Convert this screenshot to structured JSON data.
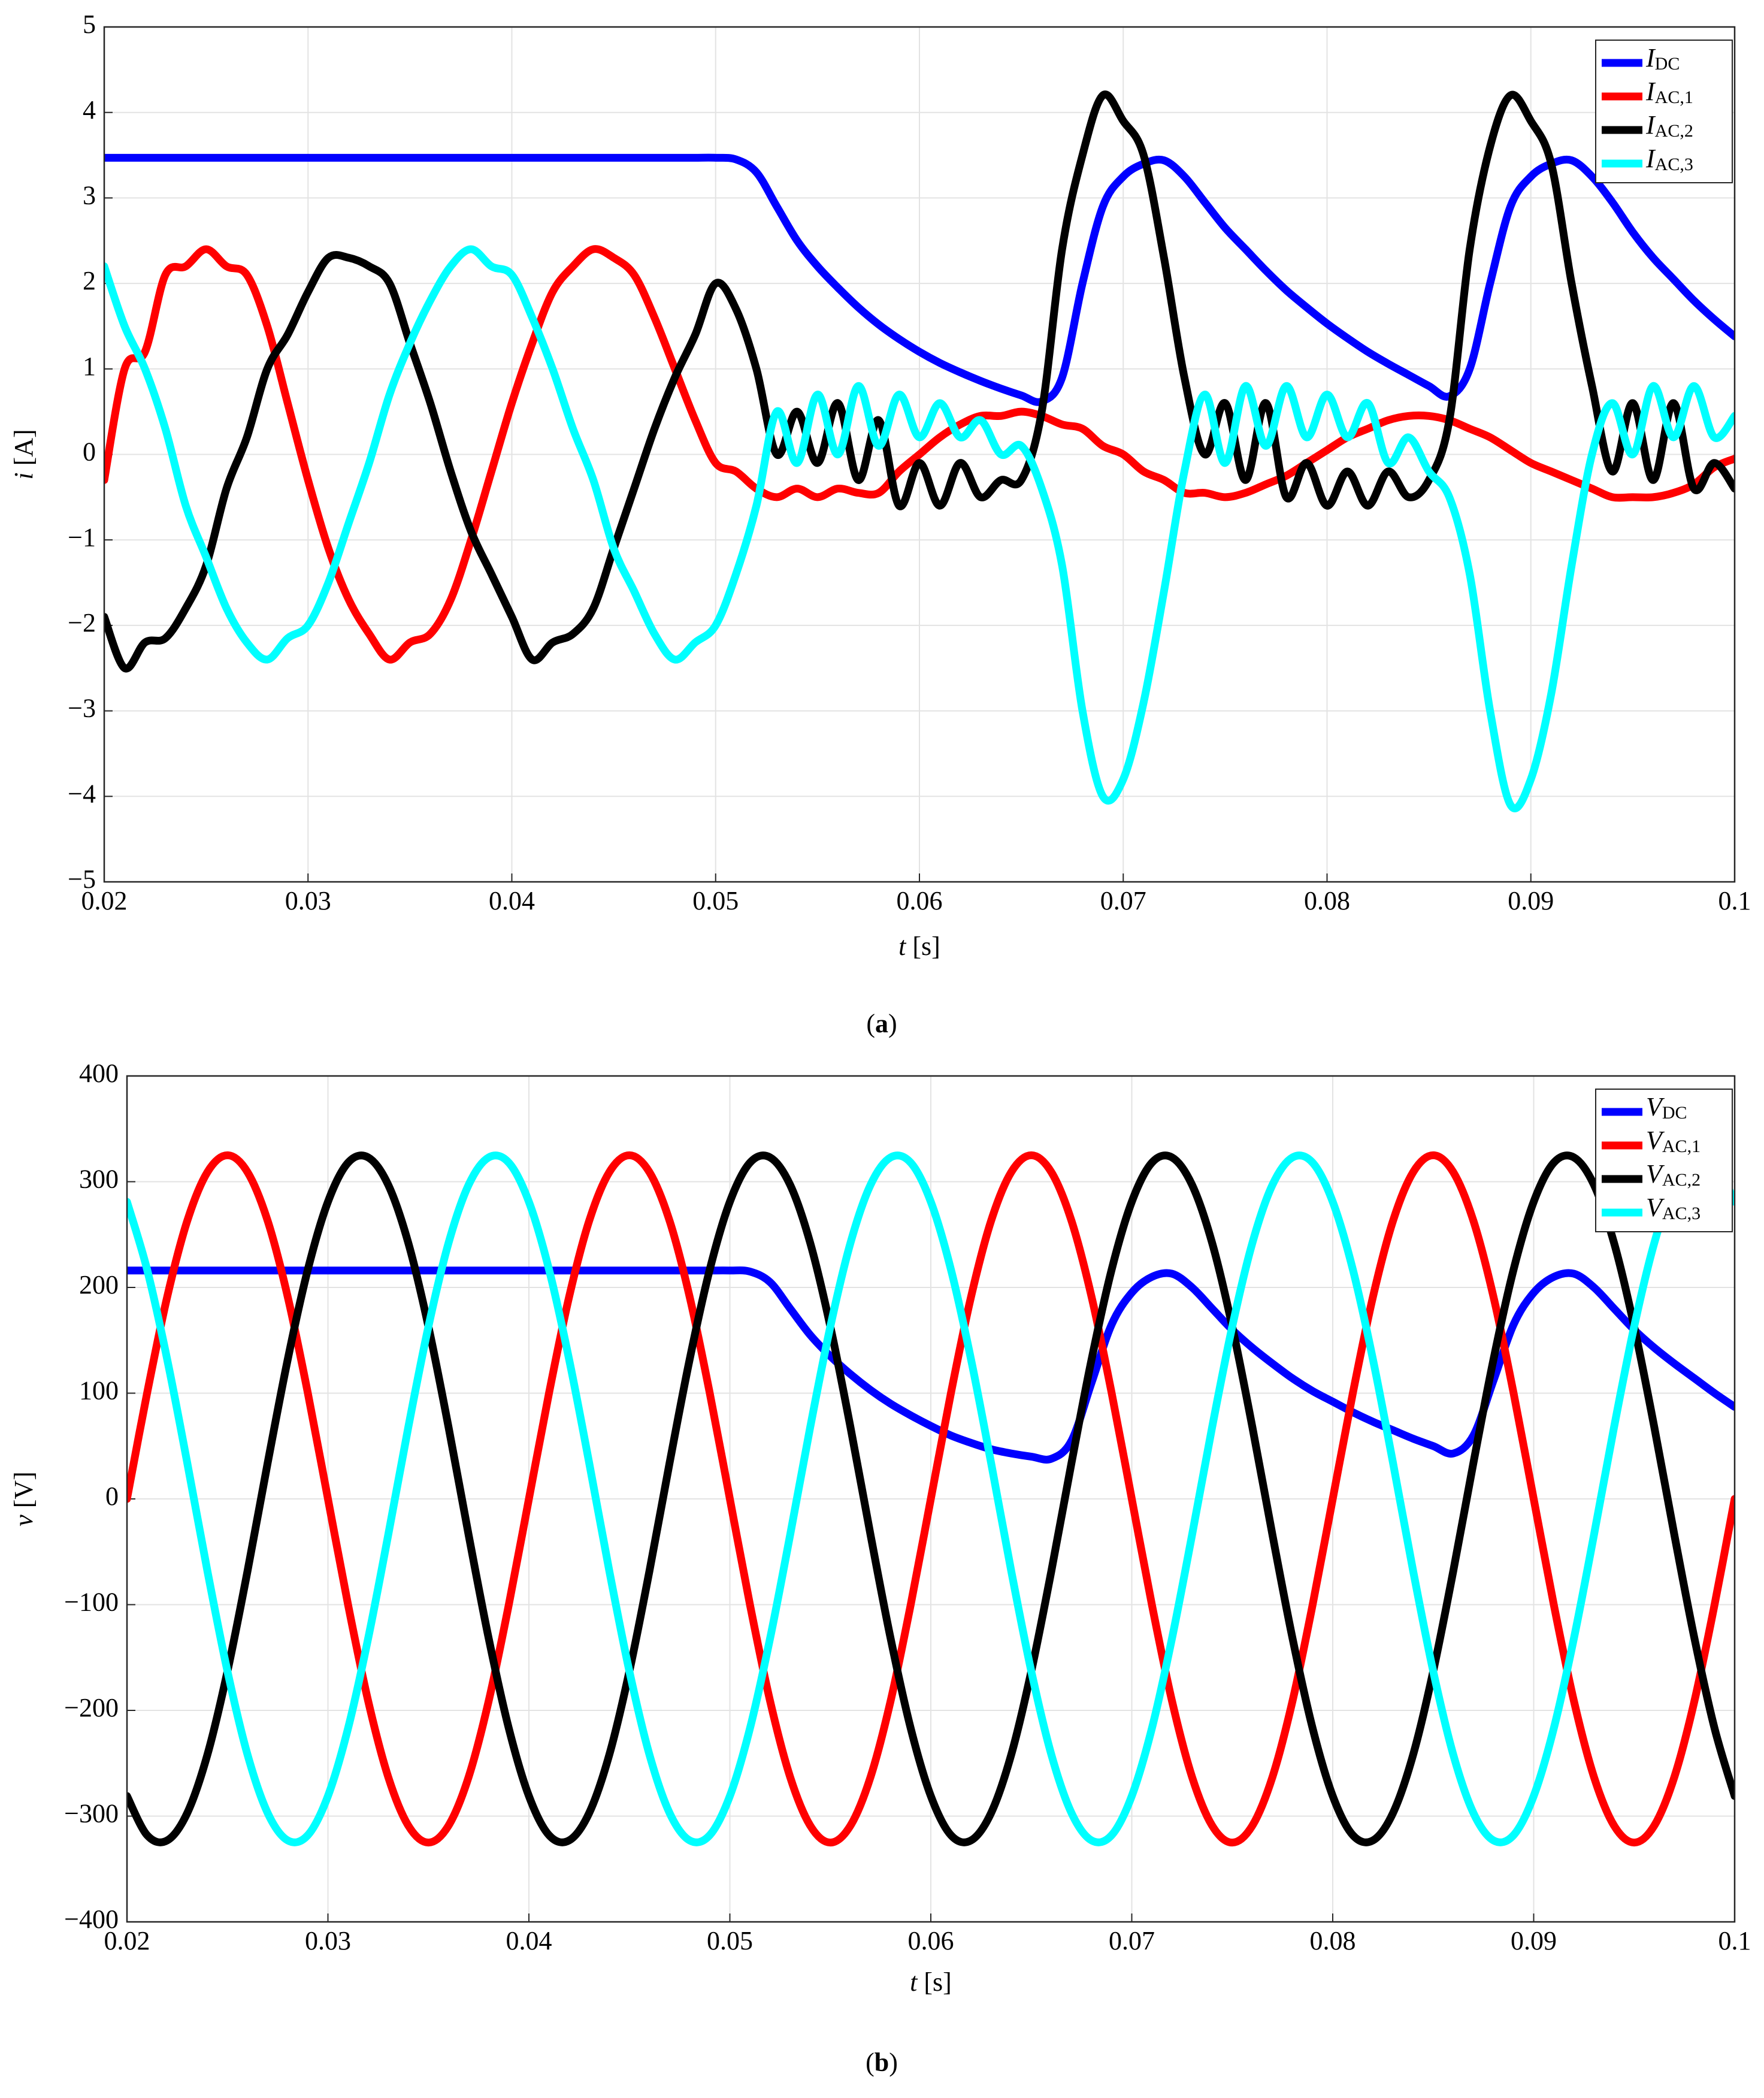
{
  "chart_data": [
    {
      "type": "line",
      "caption": "(a)",
      "xlabel": "t [s]",
      "ylabel": "i [A]",
      "grid": true,
      "legend": "upper right",
      "xlim": [
        0.02,
        0.1
      ],
      "xticks": [
        0.02,
        0.03,
        0.04,
        0.05,
        0.06,
        0.07,
        0.08,
        0.09,
        0.1
      ],
      "ylim": [
        -5,
        5
      ],
      "yticks": [
        {
          "value": -5,
          "label": "−5"
        },
        {
          "value": -4,
          "label": "−4"
        },
        {
          "value": -3,
          "label": "−3"
        },
        {
          "value": -2,
          "label": "−2"
        },
        {
          "value": -1,
          "label": "−1"
        },
        0,
        1,
        2,
        3,
        4,
        5
      ],
      "x": [
        0.02,
        0.021,
        0.022,
        0.023,
        0.024,
        0.025,
        0.026,
        0.027,
        0.028,
        0.029,
        0.03,
        0.031,
        0.032,
        0.033,
        0.034,
        0.035,
        0.036,
        0.037,
        0.038,
        0.039,
        0.04,
        0.041,
        0.042,
        0.043,
        0.044,
        0.045,
        0.046,
        0.047,
        0.048,
        0.049,
        0.05,
        0.051,
        0.052,
        0.053,
        0.054,
        0.055,
        0.056,
        0.057,
        0.058,
        0.059,
        0.06,
        0.061,
        0.062,
        0.063,
        0.064,
        0.065,
        0.066,
        0.067,
        0.068,
        0.069,
        0.07,
        0.071,
        0.072,
        0.073,
        0.074,
        0.075,
        0.076,
        0.077,
        0.078,
        0.079,
        0.08,
        0.081,
        0.082,
        0.083,
        0.084,
        0.085,
        0.086,
        0.087,
        0.088,
        0.089,
        0.09,
        0.091,
        0.092,
        0.093,
        0.094,
        0.095,
        0.096,
        0.097,
        0.098,
        0.099,
        0.1
      ],
      "series": [
        {
          "name": "IDC",
          "color": "#0000ff",
          "values": [
            3.47,
            3.47,
            3.47,
            3.47,
            3.47,
            3.47,
            3.47,
            3.47,
            3.47,
            3.47,
            3.47,
            3.47,
            3.47,
            3.47,
            3.47,
            3.47,
            3.47,
            3.47,
            3.47,
            3.47,
            3.47,
            3.47,
            3.47,
            3.47,
            3.47,
            3.47,
            3.47,
            3.47,
            3.47,
            3.47,
            3.47,
            3.45,
            3.3,
            2.9,
            2.5,
            2.2,
            1.95,
            1.72,
            1.52,
            1.35,
            1.2,
            1.07,
            0.96,
            0.86,
            0.77,
            0.69,
            0.62,
            0.9,
            2.0,
            2.9,
            3.25,
            3.4,
            3.44,
            3.25,
            2.95,
            2.65,
            2.4,
            2.15,
            1.92,
            1.72,
            1.53,
            1.36,
            1.2,
            1.06,
            0.93,
            0.8,
            0.68,
            1.0,
            2.0,
            2.9,
            3.25,
            3.4,
            3.44,
            3.25,
            2.95,
            2.6,
            2.3,
            2.05,
            1.8,
            1.58,
            1.38
          ]
        },
        {
          "name": "IAC,1",
          "color": "#ff0000",
          "values": [
            -0.3,
            1.0,
            1.2,
            2.1,
            2.2,
            2.4,
            2.2,
            2.1,
            1.5,
            0.6,
            -0.3,
            -1.1,
            -1.7,
            -2.1,
            -2.4,
            -2.2,
            -2.1,
            -1.7,
            -1.0,
            -0.2,
            0.6,
            1.3,
            1.9,
            2.2,
            2.4,
            2.3,
            2.1,
            1.6,
            1.0,
            0.4,
            -0.1,
            -0.2,
            -0.4,
            -0.5,
            -0.4,
            -0.5,
            -0.4,
            -0.45,
            -0.45,
            -0.2,
            0.0,
            0.2,
            0.35,
            0.45,
            0.45,
            0.5,
            0.45,
            0.35,
            0.3,
            0.1,
            0.0,
            -0.2,
            -0.3,
            -0.45,
            -0.45,
            -0.5,
            -0.45,
            -0.35,
            -0.25,
            -0.1,
            0.05,
            0.2,
            0.3,
            0.4,
            0.45,
            0.45,
            0.4,
            0.3,
            0.2,
            0.05,
            -0.1,
            -0.2,
            -0.3,
            -0.4,
            -0.5,
            -0.5,
            -0.5,
            -0.45,
            -0.35,
            -0.15,
            -0.05
          ]
        },
        {
          "name": "IAC,2",
          "color": "#000000",
          "values": [
            -1.9,
            -2.5,
            -2.2,
            -2.15,
            -1.8,
            -1.3,
            -0.4,
            0.2,
            1.0,
            1.4,
            1.9,
            2.3,
            2.3,
            2.2,
            2.0,
            1.3,
            0.6,
            -0.2,
            -0.9,
            -1.4,
            -1.9,
            -2.4,
            -2.2,
            -2.1,
            -1.8,
            -1.1,
            -0.4,
            0.3,
            0.9,
            1.4,
            2.0,
            1.7,
            1.0,
            0.0,
            0.5,
            -0.1,
            0.6,
            -0.3,
            0.4,
            -0.6,
            -0.1,
            -0.6,
            -0.1,
            -0.5,
            -0.3,
            -0.3,
            0.5,
            2.4,
            3.5,
            4.2,
            3.9,
            3.5,
            2.3,
            0.9,
            0.0,
            0.6,
            -0.3,
            0.6,
            -0.5,
            -0.1,
            -0.6,
            -0.2,
            -0.6,
            -0.2,
            -0.5,
            -0.3,
            0.4,
            2.4,
            3.6,
            4.2,
            3.9,
            3.4,
            2.0,
            0.8,
            -0.2,
            0.6,
            -0.3,
            0.6,
            -0.4,
            -0.1,
            -0.4
          ]
        },
        {
          "name": "IAC,3",
          "color": "#00ffff",
          "values": [
            2.2,
            1.5,
            1.0,
            0.3,
            -0.6,
            -1.2,
            -1.8,
            -2.2,
            -2.4,
            -2.15,
            -2.0,
            -1.5,
            -0.8,
            -0.1,
            0.7,
            1.3,
            1.8,
            2.2,
            2.4,
            2.2,
            2.1,
            1.6,
            1.0,
            0.3,
            -0.3,
            -1.1,
            -1.6,
            -2.1,
            -2.4,
            -2.2,
            -2.0,
            -1.4,
            -0.6,
            0.5,
            -0.1,
            0.7,
            0.0,
            0.8,
            0.1,
            0.7,
            0.2,
            0.6,
            0.2,
            0.4,
            0.0,
            0.1,
            -0.4,
            -1.3,
            -3.0,
            -4.0,
            -3.8,
            -2.9,
            -1.6,
            -0.2,
            0.7,
            -0.1,
            0.8,
            0.1,
            0.8,
            0.2,
            0.7,
            0.2,
            0.6,
            -0.1,
            0.2,
            -0.2,
            -0.5,
            -1.4,
            -3.0,
            -4.1,
            -3.8,
            -2.8,
            -1.3,
            0.0,
            0.6,
            0.0,
            0.8,
            0.2,
            0.8,
            0.2,
            0.45
          ]
        }
      ]
    },
    {
      "type": "line",
      "caption": "(b)",
      "xlabel": "t [s]",
      "ylabel": "v [V]",
      "grid": true,
      "legend": "upper right",
      "xlim": [
        0.02,
        0.1
      ],
      "xticks": [
        0.02,
        0.03,
        0.04,
        0.05,
        0.06,
        0.07,
        0.08,
        0.09,
        0.1
      ],
      "ylim": [
        -400,
        400
      ],
      "yticks": [
        {
          "value": -400,
          "label": "−400"
        },
        {
          "value": -300,
          "label": "−300"
        },
        {
          "value": -200,
          "label": "−200"
        },
        {
          "value": -100,
          "label": "−100"
        },
        0,
        100,
        200,
        300,
        400
      ],
      "x": [
        0.02,
        0.021,
        0.022,
        0.023,
        0.024,
        0.025,
        0.026,
        0.027,
        0.028,
        0.029,
        0.03,
        0.031,
        0.032,
        0.033,
        0.034,
        0.035,
        0.036,
        0.037,
        0.038,
        0.039,
        0.04,
        0.041,
        0.042,
        0.043,
        0.044,
        0.045,
        0.046,
        0.047,
        0.048,
        0.049,
        0.05,
        0.051,
        0.052,
        0.053,
        0.054,
        0.055,
        0.056,
        0.057,
        0.058,
        0.059,
        0.06,
        0.061,
        0.062,
        0.063,
        0.064,
        0.065,
        0.066,
        0.067,
        0.068,
        0.069,
        0.07,
        0.071,
        0.072,
        0.073,
        0.074,
        0.075,
        0.076,
        0.077,
        0.078,
        0.079,
        0.08,
        0.081,
        0.082,
        0.083,
        0.084,
        0.085,
        0.086,
        0.087,
        0.088,
        0.089,
        0.09,
        0.091,
        0.092,
        0.093,
        0.094,
        0.095,
        0.096,
        0.097,
        0.098,
        0.099,
        0.1
      ],
      "series": [
        {
          "name": "VDC",
          "color": "#0000ff",
          "values": [
            216,
            216,
            216,
            216,
            216,
            216,
            216,
            216,
            216,
            216,
            216,
            216,
            216,
            216,
            216,
            216,
            216,
            216,
            216,
            216,
            216,
            216,
            216,
            216,
            216,
            216,
            216,
            216,
            216,
            216,
            216,
            215,
            205,
            180,
            155,
            135,
            118,
            103,
            90,
            79,
            69,
            60,
            53,
            47,
            43,
            40,
            38,
            55,
            110,
            165,
            195,
            210,
            213,
            200,
            180,
            160,
            143,
            128,
            114,
            102,
            92,
            82,
            73,
            65,
            57,
            50,
            43,
            60,
            112,
            165,
            195,
            210,
            213,
            200,
            180,
            160,
            143,
            128,
            114,
            100,
            87
          ]
        },
        {
          "name": "VAC,1",
          "color": "#ff0000",
          "values": [
            0,
            100,
            191,
            263,
            309,
            325,
            309,
            263,
            191,
            100,
            0,
            -100,
            -191,
            -263,
            -309,
            -325,
            -309,
            -263,
            -191,
            -100,
            0,
            100,
            191,
            263,
            309,
            325,
            309,
            263,
            191,
            100,
            0,
            -100,
            -191,
            -263,
            -309,
            -325,
            -309,
            -263,
            -191,
            -100,
            0,
            100,
            191,
            263,
            309,
            325,
            309,
            263,
            191,
            100,
            0,
            -100,
            -191,
            -263,
            -309,
            -325,
            -309,
            -263,
            -191,
            -100,
            0,
            100,
            191,
            263,
            309,
            325,
            309,
            263,
            191,
            100,
            0,
            -100,
            -191,
            -263,
            -309,
            -325,
            -309,
            -263,
            -191,
            -100,
            0
          ]
        },
        {
          "name": "VAC,2",
          "color": "#000000",
          "values": [
            -281,
            -318,
            -323,
            -297,
            -242,
            -163,
            -68,
            34,
            132,
            217,
            281,
            318,
            323,
            297,
            242,
            163,
            68,
            -34,
            -132,
            -217,
            -281,
            -318,
            -323,
            -297,
            -242,
            -163,
            -68,
            34,
            132,
            217,
            281,
            318,
            323,
            297,
            242,
            163,
            68,
            -34,
            -132,
            -217,
            -281,
            -318,
            -323,
            -297,
            -242,
            -163,
            -68,
            34,
            132,
            217,
            281,
            318,
            323,
            297,
            242,
            163,
            68,
            -34,
            -132,
            -217,
            -281,
            -318,
            -323,
            -297,
            -242,
            -163,
            -68,
            34,
            132,
            217,
            281,
            318,
            323,
            297,
            242,
            163,
            68,
            -34,
            -132,
            -217,
            -281
          ]
        },
        {
          "name": "VAC,3",
          "color": "#00ffff",
          "values": [
            281,
            217,
            132,
            34,
            -68,
            -163,
            -242,
            -297,
            -323,
            -318,
            -281,
            -217,
            -132,
            -34,
            68,
            163,
            242,
            297,
            323,
            318,
            281,
            217,
            132,
            34,
            -68,
            -163,
            -242,
            -297,
            -323,
            -318,
            -281,
            -217,
            -132,
            -34,
            68,
            163,
            242,
            297,
            323,
            318,
            281,
            217,
            132,
            34,
            -68,
            -163,
            -242,
            -297,
            -323,
            -318,
            -281,
            -217,
            -132,
            -34,
            68,
            163,
            242,
            297,
            323,
            318,
            281,
            217,
            132,
            34,
            -68,
            -163,
            -242,
            -297,
            -323,
            -318,
            -281,
            -217,
            -132,
            -34,
            68,
            163,
            242,
            297,
            323,
            318,
            281
          ]
        }
      ]
    }
  ]
}
